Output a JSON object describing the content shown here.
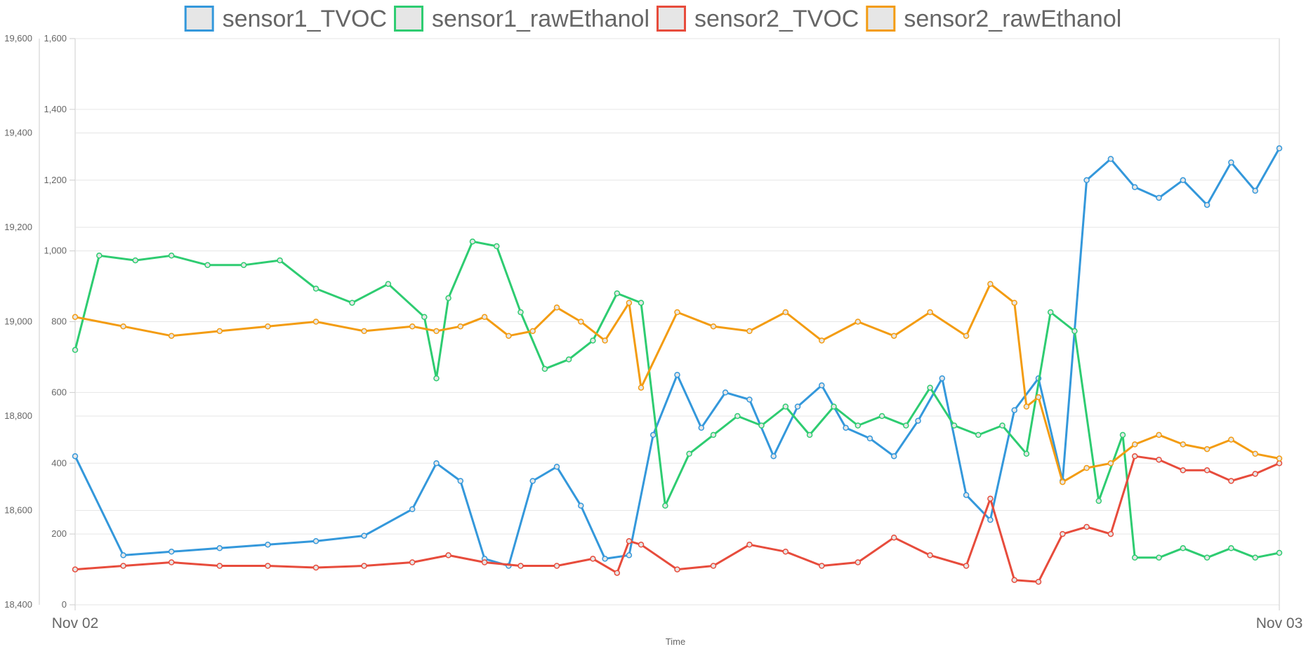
{
  "chart_data": {
    "type": "line",
    "title": "",
    "xlabel": "Time",
    "x_range": [
      "Nov 02",
      "Nov 03"
    ],
    "x_tick_labels": [
      "Nov 02",
      "Nov 03"
    ],
    "legend_position": "top",
    "grid": true,
    "left_axis": {
      "ylim": [
        18400,
        19600
      ],
      "tick_labels": [
        "18,400",
        "18,600",
        "18,800",
        "19,000",
        "19,200",
        "19,400",
        "19,600"
      ]
    },
    "right_axis": {
      "ylim": [
        0,
        1600
      ],
      "tick_labels": [
        "0",
        "200",
        "400",
        "600",
        "800",
        "1,000",
        "1,200",
        "1,400",
        "1,600"
      ]
    },
    "series": [
      {
        "name": "sensor1_TVOC",
        "axis": "right",
        "color": "#3498db",
        "x_fraction": [
          0.0,
          0.04,
          0.08,
          0.12,
          0.16,
          0.2,
          0.24,
          0.28,
          0.3,
          0.32,
          0.34,
          0.36,
          0.38,
          0.4,
          0.42,
          0.44,
          0.46,
          0.48,
          0.5,
          0.52,
          0.54,
          0.56,
          0.58,
          0.6,
          0.62,
          0.64,
          0.66,
          0.68,
          0.7,
          0.72,
          0.74,
          0.76,
          0.78,
          0.8,
          0.82,
          0.84,
          0.86,
          0.88,
          0.9,
          0.92,
          0.94,
          0.96,
          0.98,
          1.0
        ],
        "values": [
          420,
          140,
          150,
          160,
          170,
          180,
          195,
          270,
          400,
          350,
          130,
          110,
          350,
          390,
          280,
          130,
          140,
          480,
          650,
          500,
          600,
          580,
          420,
          560,
          620,
          500,
          470,
          420,
          520,
          640,
          310,
          240,
          550,
          640,
          350,
          1200,
          1260,
          1180,
          1150,
          1200,
          1130,
          1250,
          1170,
          1290
        ]
      },
      {
        "name": "sensor1_rawEthanol",
        "axis": "left",
        "color": "#2ecc71",
        "x_fraction": [
          0.0,
          0.02,
          0.05,
          0.08,
          0.11,
          0.14,
          0.17,
          0.2,
          0.23,
          0.26,
          0.29,
          0.3,
          0.31,
          0.33,
          0.35,
          0.37,
          0.39,
          0.41,
          0.43,
          0.45,
          0.47,
          0.49,
          0.51,
          0.53,
          0.55,
          0.57,
          0.59,
          0.61,
          0.63,
          0.65,
          0.67,
          0.69,
          0.71,
          0.73,
          0.75,
          0.77,
          0.79,
          0.81,
          0.83,
          0.85,
          0.87,
          0.88,
          0.9,
          0.92,
          0.94,
          0.96,
          0.98,
          1.0
        ],
        "values": [
          18940,
          19140,
          19130,
          19140,
          19120,
          19120,
          19130,
          19070,
          19040,
          19080,
          19010,
          18880,
          19050,
          19170,
          19160,
          19020,
          18900,
          18920,
          18960,
          19060,
          19040,
          18610,
          18720,
          18760,
          18800,
          18780,
          18820,
          18760,
          18820,
          18780,
          18800,
          18780,
          18860,
          18780,
          18760,
          18780,
          18720,
          19020,
          18980,
          18620,
          18760,
          18500,
          18500,
          18520,
          18500,
          18520,
          18500,
          18510
        ]
      },
      {
        "name": "sensor2_TVOC",
        "axis": "right",
        "color": "#e74c3c",
        "x_fraction": [
          0.0,
          0.04,
          0.08,
          0.12,
          0.16,
          0.2,
          0.24,
          0.28,
          0.31,
          0.34,
          0.37,
          0.4,
          0.43,
          0.45,
          0.46,
          0.47,
          0.5,
          0.53,
          0.56,
          0.59,
          0.62,
          0.65,
          0.68,
          0.71,
          0.74,
          0.76,
          0.78,
          0.8,
          0.82,
          0.84,
          0.86,
          0.88,
          0.9,
          0.92,
          0.94,
          0.96,
          0.98,
          1.0
        ],
        "values": [
          100,
          110,
          120,
          110,
          110,
          105,
          110,
          120,
          140,
          120,
          110,
          110,
          130,
          90,
          180,
          170,
          100,
          110,
          170,
          150,
          110,
          120,
          190,
          140,
          110,
          300,
          70,
          65,
          200,
          220,
          200,
          420,
          410,
          380,
          380,
          350,
          370,
          400
        ]
      },
      {
        "name": "sensor2_rawEthanol",
        "axis": "left",
        "color": "#f39c12",
        "x_fraction": [
          0.0,
          0.04,
          0.08,
          0.12,
          0.16,
          0.2,
          0.24,
          0.28,
          0.3,
          0.32,
          0.34,
          0.36,
          0.38,
          0.4,
          0.42,
          0.44,
          0.46,
          0.47,
          0.5,
          0.53,
          0.56,
          0.59,
          0.62,
          0.65,
          0.68,
          0.71,
          0.74,
          0.76,
          0.78,
          0.79,
          0.8,
          0.82,
          0.84,
          0.86,
          0.88,
          0.9,
          0.92,
          0.94,
          0.96,
          0.98,
          1.0
        ],
        "values": [
          19010,
          18990,
          18970,
          18980,
          18990,
          19000,
          18980,
          18990,
          18980,
          18990,
          19010,
          18970,
          18980,
          19030,
          19000,
          18960,
          19040,
          18860,
          19020,
          18990,
          18980,
          19020,
          18960,
          19000,
          18970,
          19020,
          18970,
          19080,
          19040,
          18820,
          18840,
          18660,
          18690,
          18700,
          18740,
          18760,
          18740,
          18730,
          18750,
          18720,
          18710
        ]
      }
    ]
  }
}
